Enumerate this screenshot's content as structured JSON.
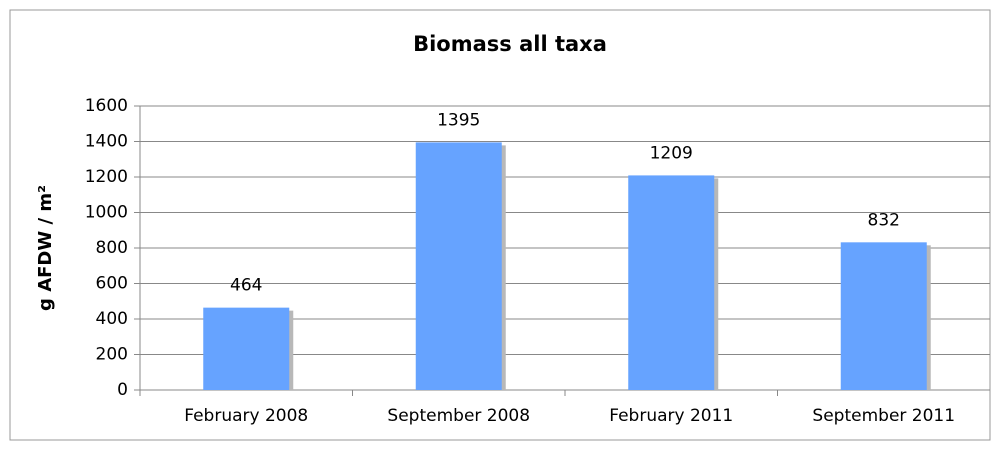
{
  "chart_data": {
    "type": "bar",
    "title": "Biomass all taxa",
    "y_label": "g AFDW / m²",
    "categories": [
      "February 2008",
      "September 2008",
      "February 2011",
      "September 2011"
    ],
    "values": [
      464,
      1395,
      1209,
      832
    ],
    "color": "#66a3ff",
    "ylim": [
      0,
      1600
    ],
    "yticks": [
      0,
      200,
      400,
      600,
      800,
      1000,
      1200,
      1400,
      1600
    ],
    "grid": true
  }
}
